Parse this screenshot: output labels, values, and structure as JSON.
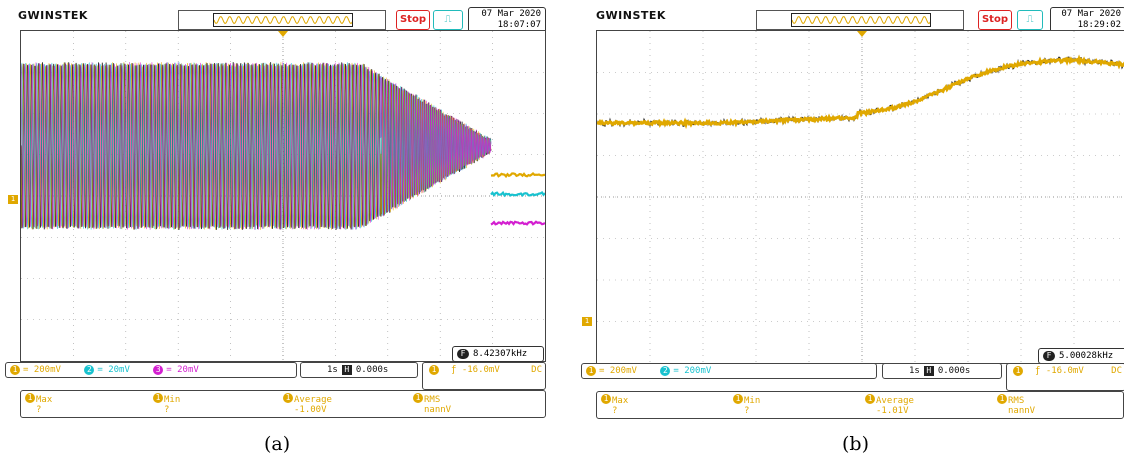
{
  "logo": "GWINSTEK",
  "stop_label": "Stop",
  "trigger_icon": "square-wave-trigger-icon",
  "panels": {
    "a": {
      "date": "07 Mar 2020",
      "time": "18:07:07",
      "frequency": "8.42307kHz",
      "freq_badge": "F",
      "ch1": "1",
      "ch1_scale": "= 200mV",
      "ch2": "2",
      "ch2_scale": "= 20mV",
      "ch3": "3",
      "ch3_scale": "= 20mV",
      "timebase": "1s",
      "h_badge": "H",
      "offset": "0.000s",
      "trig_ch": "1",
      "trig_level": "ƒ -16.0mV",
      "coupling": "DC",
      "meas_max": "Max ?",
      "meas_min": "Min ?",
      "meas_avg": "Average -1.00V",
      "meas_rms": "RMS nannV",
      "caption": "(a)"
    },
    "b": {
      "date": "07 Mar 2020",
      "time": "18:29:02",
      "frequency": "5.00028kHz",
      "freq_badge": "F",
      "ch1": "1",
      "ch1_scale": "= 200mV",
      "ch2": "2",
      "ch2_scale": "= 200mV",
      "timebase": "1s",
      "h_badge": "H",
      "offset": "0.000s",
      "trig_ch": "1",
      "trig_level": "ƒ -16.0mV",
      "coupling": "DC",
      "meas_max": "Max ?",
      "meas_min": "Min ?",
      "meas_avg": "Average -1.01V",
      "meas_rms": "RMS nannV",
      "caption": "(b)"
    }
  },
  "colors": {
    "ch1": "#e0a800",
    "ch2": "#19c2cf",
    "ch3": "#d31fd0",
    "stop": "#dd2222"
  }
}
